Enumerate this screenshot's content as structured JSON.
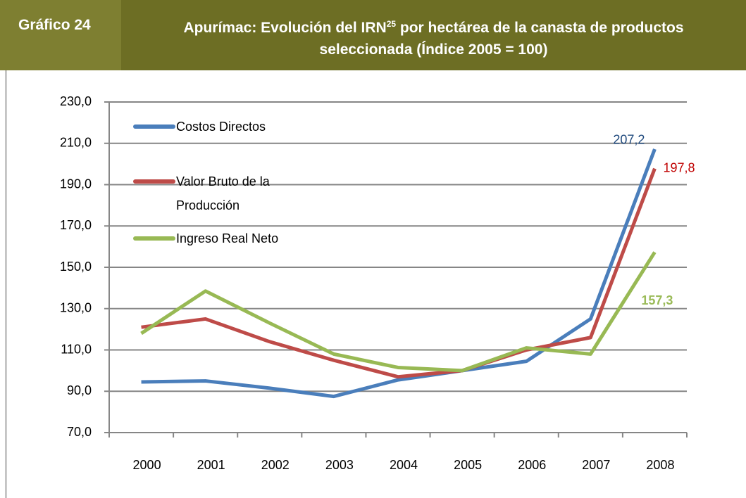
{
  "header": {
    "label": "Gráfico 24",
    "title_line1": "Apurímac: Evolución del IRN",
    "title_superscript": "25",
    "title_line1_end": " por hectárea de la canasta de productos",
    "title_line2": "seleccionada (Índice 2005 = 100)"
  },
  "chart_data": {
    "type": "line",
    "categories": [
      "2000",
      "2001",
      "2002",
      "2003",
      "2004",
      "2005",
      "2006",
      "2007",
      "2008"
    ],
    "series": [
      {
        "name": "Costos Directos",
        "color": "#4a7ebb",
        "label_color": "#1f497d",
        "values": [
          94.5,
          95,
          91.5,
          87.5,
          95.5,
          100,
          104.5,
          125,
          207.2
        ],
        "value_labels": [
          null,
          null,
          null,
          null,
          null,
          null,
          null,
          null,
          "207,2"
        ]
      },
      {
        "name": "Valor Bruto de la Producción",
        "color": "#be4b48",
        "label_color": "#c00000",
        "values": [
          121,
          125,
          114,
          105,
          97,
          100,
          110,
          116,
          197.8
        ],
        "value_labels": [
          null,
          null,
          null,
          null,
          null,
          null,
          null,
          null,
          "197,8"
        ]
      },
      {
        "name": "Ingreso Real Neto",
        "color": "#98b954",
        "label_color": "#9bbb59",
        "values": [
          118,
          138.5,
          123,
          108,
          101.5,
          100,
          111,
          108,
          157.3
        ],
        "value_labels": [
          null,
          null,
          null,
          null,
          null,
          null,
          null,
          null,
          "157,3"
        ]
      }
    ],
    "ylim": [
      70,
      230
    ],
    "yticks": [
      {
        "value": 70,
        "label": "70,0"
      },
      {
        "value": 90,
        "label": "90,0"
      },
      {
        "value": 110,
        "label": "110,0"
      },
      {
        "value": 130,
        "label": "130,0"
      },
      {
        "value": 150,
        "label": "150,0"
      },
      {
        "value": 170,
        "label": "170,0"
      },
      {
        "value": 190,
        "label": "190,0"
      },
      {
        "value": 210,
        "label": "210,0"
      },
      {
        "value": 230,
        "label": "230,0"
      }
    ],
    "grid": true,
    "legend": "upper left"
  }
}
